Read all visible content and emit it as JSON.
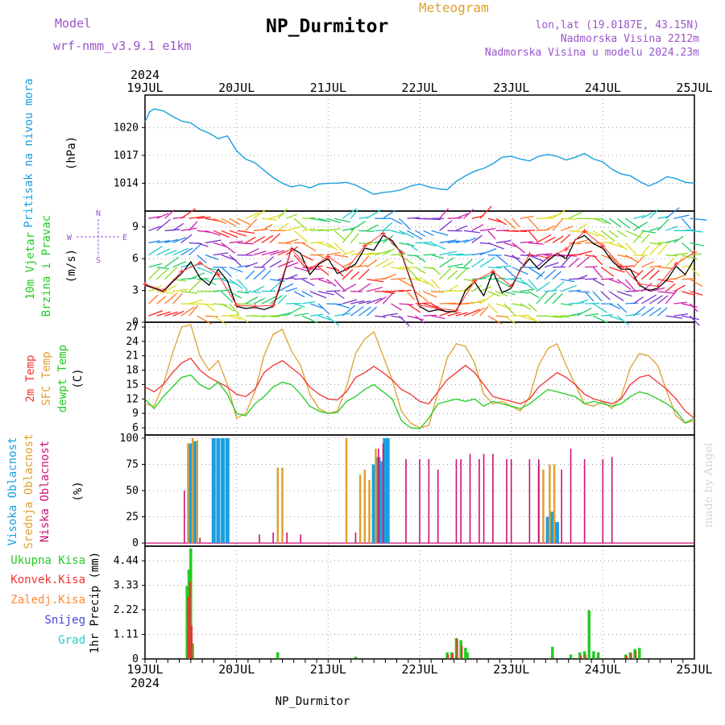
{
  "header": {
    "model_label": "Model",
    "model_name": "wrf-nmm_v3.9.1 e1km",
    "title": "NP_Durmitor",
    "meteogram_label": "Meteogram",
    "coords": "lon,lat (19.0187E, 43.15N)",
    "elev_station": "Nadmorska Visina 2212m",
    "elev_model": "Nadmorska Visina u modelu 2024.23m",
    "year_top": "2024",
    "year_bottom": "2024",
    "footer": "NP_Durmitor",
    "credit": "made by Angel"
  },
  "colors": {
    "pressure": "#1a9fe0",
    "wind_speed": "#000000",
    "gust": "#ff3333",
    "t2m": "#ee3333",
    "sfc": "#e0a030",
    "dewpt": "#22cc22",
    "cloud_high": "#1a9fe0",
    "cloud_mid": "#e0a030",
    "cloud_low": "#cc1177",
    "precip_total": "#22cc22",
    "precip_conv": "#ee3333",
    "precip_frozen": "#ff8833",
    "precip_snow": "#4444dd",
    "precip_graupel": "#22cccc",
    "title_purple": "#9955cc"
  },
  "chart_data": [
    {
      "type": "line",
      "id": "pressure",
      "ylabel_main": "Pritisak na nivou mora",
      "ylabel_unit": "(hPa)",
      "ylim": [
        1011,
        1023.5
      ],
      "yticks": [
        1014,
        1017,
        1020
      ],
      "xlim_days": [
        0,
        6
      ],
      "x_date_labels": [
        "19JUL",
        "20JUL",
        "21JUL",
        "22JUL",
        "23JUL",
        "24JUL",
        "25JUL"
      ],
      "series": [
        {
          "x": [
            0,
            0.05,
            0.1,
            0.2,
            0.3,
            0.4,
            0.5,
            0.6,
            0.7,
            0.8,
            0.9,
            1.0,
            1.1,
            1.2,
            1.3,
            1.4,
            1.5,
            1.6,
            1.7,
            1.8,
            1.9,
            2.0,
            2.1,
            2.2,
            2.3,
            2.4,
            2.5,
            2.6,
            2.7,
            2.8,
            2.9,
            3.0,
            3.1,
            3.2,
            3.3,
            3.4,
            3.5,
            3.6,
            3.7,
            3.8,
            3.9,
            4.0,
            4.1,
            4.2,
            4.3,
            4.4,
            4.5,
            4.6,
            4.7,
            4.8,
            4.9,
            5.0,
            5.1,
            5.2,
            5.3,
            5.4,
            5.5,
            5.6,
            5.7,
            5.8,
            5.9,
            6.0
          ],
          "y": [
            1020.6,
            1021.7,
            1022.0,
            1021.8,
            1021.2,
            1020.7,
            1020.5,
            1019.8,
            1019.4,
            1018.8,
            1019.1,
            1017.5,
            1016.6,
            1016.2,
            1015.4,
            1014.6,
            1014.0,
            1013.6,
            1013.8,
            1013.5,
            1013.9,
            1014.0,
            1014.0,
            1014.1,
            1013.8,
            1013.3,
            1012.8,
            1013.0,
            1013.1,
            1013.3,
            1013.7,
            1013.9,
            1013.6,
            1013.4,
            1013.3,
            1014.2,
            1014.8,
            1015.3,
            1015.6,
            1016.1,
            1016.8,
            1016.9,
            1016.6,
            1016.4,
            1016.9,
            1017.1,
            1016.9,
            1016.5,
            1016.8,
            1017.2,
            1016.6,
            1016.3,
            1015.5,
            1015.0,
            1014.8,
            1014.2,
            1013.7,
            1014.1,
            1014.7,
            1014.5,
            1014.1,
            1014.0
          ]
        }
      ]
    },
    {
      "type": "line",
      "id": "wind",
      "ylabel_main": "10m Vjetar",
      "ylabel_sub": "Brzina i Pravac",
      "ylabel_unit": "(m/s)",
      "compass": {
        "n": "N",
        "w": "W",
        "e": "E",
        "s": "S"
      },
      "ylim": [
        0,
        10.5
      ],
      "yticks": [
        0,
        3,
        6,
        9
      ],
      "series": [
        {
          "name": "speed",
          "x": [
            0,
            0.1,
            0.2,
            0.3,
            0.4,
            0.5,
            0.6,
            0.7,
            0.8,
            0.9,
            1.0,
            1.1,
            1.2,
            1.3,
            1.4,
            1.5,
            1.6,
            1.7,
            1.8,
            1.9,
            2.0,
            2.1,
            2.2,
            2.3,
            2.4,
            2.5,
            2.6,
            2.7,
            2.8,
            2.9,
            3.0,
            3.1,
            3.2,
            3.3,
            3.4,
            3.5,
            3.6,
            3.7,
            3.8,
            3.9,
            4.0,
            4.1,
            4.2,
            4.3,
            4.4,
            4.5,
            4.6,
            4.7,
            4.8,
            4.9,
            5.0,
            5.1,
            5.2,
            5.3,
            5.4,
            5.5,
            5.6,
            5.7,
            5.8,
            5.9,
            6.0
          ],
          "y": [
            3.5,
            3.2,
            2.9,
            3.8,
            4.6,
            5.7,
            4.2,
            3.5,
            5.0,
            3.9,
            1.5,
            1.3,
            1.4,
            1.2,
            1.5,
            4.0,
            7.0,
            6.5,
            4.5,
            5.5,
            6.0,
            4.6,
            5.0,
            5.5,
            7.0,
            6.8,
            8.2,
            7.7,
            6.5,
            4.0,
            1.5,
            1.0,
            1.2,
            1.0,
            1.0,
            3.0,
            3.8,
            2.5,
            4.8,
            2.8,
            3.2,
            5.0,
            6.0,
            5.0,
            5.8,
            6.5,
            6.0,
            7.8,
            8.2,
            7.4,
            7.0,
            5.8,
            5.0,
            5.0,
            3.5,
            3.0,
            3.2,
            4.0,
            5.3,
            4.5,
            6.0
          ]
        },
        {
          "name": "gust",
          "x": [
            0,
            0.2,
            0.4,
            0.6,
            0.8,
            1.0,
            1.2,
            1.4,
            1.6,
            1.8,
            2.0,
            2.2,
            2.4,
            2.6,
            2.8,
            3.0,
            3.2,
            3.4,
            3.6,
            3.8,
            4.0,
            4.2,
            4.4,
            4.6,
            4.8,
            5.0,
            5.2,
            5.4,
            5.6,
            5.8,
            6.0
          ],
          "y": [
            3.6,
            3.0,
            4.8,
            5.6,
            4.5,
            1.6,
            1.5,
            1.6,
            6.9,
            5.0,
            6.2,
            5.0,
            7.2,
            8.4,
            6.6,
            1.6,
            1.3,
            1.1,
            3.9,
            4.8,
            3.4,
            6.4,
            6.1,
            6.9,
            8.6,
            7.2,
            5.3,
            3.6,
            3.4,
            5.5,
            6.6
          ]
        }
      ]
    },
    {
      "type": "line",
      "id": "temperature",
      "ylabel_t2m": "2m Temp",
      "ylabel_sfc": "SFC Temp",
      "ylabel_dew": "dewpt Temp",
      "ylabel_unit": "(C)",
      "ylim": [
        4.5,
        28
      ],
      "yticks": [
        6,
        9,
        12,
        15,
        18,
        21,
        24,
        27
      ],
      "series": [
        {
          "name": "2m Temp",
          "x": [
            0,
            0.1,
            0.2,
            0.3,
            0.4,
            0.5,
            0.6,
            0.7,
            0.8,
            0.9,
            1.0,
            1.1,
            1.2,
            1.3,
            1.4,
            1.5,
            1.6,
            1.7,
            1.8,
            1.9,
            2.0,
            2.1,
            2.2,
            2.3,
            2.4,
            2.5,
            2.6,
            2.7,
            2.8,
            2.9,
            3.0,
            3.1,
            3.2,
            3.3,
            3.4,
            3.5,
            3.6,
            3.7,
            3.8,
            3.9,
            4.0,
            4.1,
            4.2,
            4.3,
            4.4,
            4.5,
            4.6,
            4.7,
            4.8,
            4.9,
            5.0,
            5.1,
            5.2,
            5.3,
            5.4,
            5.5,
            5.6,
            5.7,
            5.8,
            5.9,
            6.0
          ],
          "y": [
            14.5,
            13.5,
            15.0,
            17.5,
            19.5,
            20.5,
            18.0,
            16.5,
            15.5,
            14.5,
            13.0,
            12.5,
            14.0,
            17.5,
            19.0,
            20.0,
            18.5,
            17.0,
            14.5,
            13.0,
            12.0,
            11.8,
            13.5,
            16.5,
            17.5,
            18.8,
            17.5,
            16.0,
            14.0,
            13.0,
            11.5,
            11.0,
            13.5,
            16.0,
            17.5,
            19.0,
            17.5,
            15.0,
            12.5,
            12.0,
            11.5,
            11.0,
            12.0,
            14.5,
            16.0,
            17.5,
            16.5,
            15.0,
            13.0,
            12.0,
            11.5,
            11.0,
            12.0,
            15.0,
            16.5,
            17.0,
            15.5,
            14.0,
            12.0,
            9.5,
            8.0
          ]
        },
        {
          "name": "SFC Temp",
          "x": [
            0,
            0.1,
            0.2,
            0.3,
            0.4,
            0.5,
            0.6,
            0.7,
            0.8,
            0.9,
            1.0,
            1.1,
            1.2,
            1.3,
            1.4,
            1.5,
            1.6,
            1.7,
            1.8,
            1.9,
            2.0,
            2.1,
            2.2,
            2.3,
            2.4,
            2.5,
            2.6,
            2.7,
            2.8,
            2.9,
            3.0,
            3.1,
            3.2,
            3.3,
            3.4,
            3.5,
            3.6,
            3.7,
            3.8,
            3.9,
            4.0,
            4.1,
            4.2,
            4.3,
            4.4,
            4.5,
            4.6,
            4.7,
            4.8,
            4.9,
            5.0,
            5.1,
            5.2,
            5.3,
            5.4,
            5.5,
            5.6,
            5.7,
            5.8,
            5.9,
            6.0
          ],
          "y": [
            11.0,
            10.5,
            15.0,
            21.5,
            27.0,
            27.5,
            21.0,
            18.0,
            20.0,
            15.0,
            8.0,
            9.0,
            13.5,
            21.0,
            25.5,
            26.5,
            22.0,
            19.0,
            13.0,
            10.0,
            9.0,
            9.5,
            14.5,
            21.5,
            24.5,
            26.0,
            21.0,
            16.0,
            9.5,
            7.0,
            6.0,
            6.5,
            13.5,
            20.5,
            23.5,
            23.0,
            19.5,
            13.0,
            11.0,
            11.5,
            10.5,
            9.5,
            12.5,
            19.0,
            22.5,
            23.5,
            19.0,
            15.0,
            11.0,
            10.5,
            11.5,
            10.0,
            12.5,
            18.5,
            21.5,
            21.0,
            19.0,
            13.5,
            8.5,
            7.0,
            7.5
          ]
        },
        {
          "name": "dewpt Temp",
          "x": [
            0,
            0.1,
            0.2,
            0.3,
            0.4,
            0.5,
            0.6,
            0.7,
            0.8,
            0.9,
            1.0,
            1.1,
            1.2,
            1.3,
            1.4,
            1.5,
            1.6,
            1.7,
            1.8,
            1.9,
            2.0,
            2.1,
            2.2,
            2.3,
            2.4,
            2.5,
            2.6,
            2.7,
            2.8,
            2.9,
            3.0,
            3.1,
            3.2,
            3.3,
            3.4,
            3.5,
            3.6,
            3.7,
            3.8,
            3.9,
            4.0,
            4.1,
            4.2,
            4.3,
            4.4,
            4.5,
            4.6,
            4.7,
            4.8,
            4.9,
            5.0,
            5.1,
            5.2,
            5.3,
            5.4,
            5.5,
            5.6,
            5.7,
            5.8,
            5.9,
            6.0
          ],
          "y": [
            12.0,
            10.0,
            12.5,
            14.5,
            16.5,
            17.0,
            15.0,
            14.0,
            15.5,
            13.0,
            9.0,
            8.5,
            11.0,
            12.5,
            14.5,
            15.5,
            15.0,
            13.0,
            10.5,
            9.5,
            9.0,
            9.2,
            11.5,
            12.5,
            14.0,
            15.0,
            13.5,
            12.0,
            7.5,
            6.0,
            5.8,
            8.0,
            11.0,
            11.5,
            12.0,
            11.5,
            12.0,
            10.5,
            11.5,
            11.0,
            10.5,
            10.0,
            11.0,
            12.5,
            14.0,
            13.5,
            13.0,
            12.5,
            11.0,
            11.5,
            11.0,
            10.5,
            11.0,
            12.5,
            13.5,
            13.0,
            12.0,
            11.0,
            9.5,
            7.0,
            8.0
          ]
        }
      ]
    },
    {
      "type": "bar",
      "id": "clouds",
      "ylabel_high": "Visoka Oblacnost",
      "ylabel_mid": "Srednja Oblacnost",
      "ylabel_low": "Niska Oblacnost",
      "ylabel_unit": "(%)",
      "ylim": [
        -3,
        103
      ],
      "yticks": [
        0,
        25,
        50,
        75,
        100
      ],
      "series": [
        {
          "name": "Visoka Oblacnost",
          "x": [
            0.5,
            0.55,
            0.75,
            0.8,
            0.85,
            0.9,
            2.5,
            2.55,
            2.57,
            2.62,
            2.65,
            4.4,
            4.45,
            4.5
          ],
          "y": [
            95,
            97,
            100,
            100,
            100,
            100,
            75,
            82,
            78,
            100,
            100,
            25,
            30,
            20
          ]
        },
        {
          "name": "Srednja Oblacnost",
          "x": [
            0.47,
            0.52,
            0.57,
            1.45,
            1.5,
            2.2,
            2.35,
            2.4,
            2.45,
            2.52,
            4.3,
            4.35,
            4.42,
            4.47
          ],
          "y": [
            95,
            100,
            98,
            72,
            72,
            100,
            65,
            70,
            60,
            90,
            75,
            70,
            75,
            75
          ]
        },
        {
          "name": "Niska Oblacnost",
          "x": [
            0.43,
            0.6,
            1.25,
            1.4,
            1.55,
            1.7,
            2.3,
            2.55,
            2.6,
            2.85,
            3.0,
            3.1,
            3.2,
            3.4,
            3.45,
            3.55,
            3.65,
            3.7,
            3.8,
            3.95,
            4.0,
            4.2,
            4.3,
            4.55,
            4.65,
            4.8,
            5.0,
            5.1
          ],
          "y": [
            50,
            5,
            8,
            10,
            10,
            8,
            10,
            90,
            95,
            80,
            80,
            80,
            70,
            80,
            80,
            85,
            80,
            85,
            85,
            80,
            80,
            80,
            80,
            70,
            90,
            80,
            80,
            82
          ]
        }
      ]
    },
    {
      "type": "bar",
      "id": "precip",
      "ylabel_main": "1hr Precip",
      "ylabel_unit": "(mm)",
      "legend": [
        "Ukupna Kisa",
        "Konvek.Kisa",
        "Zaledj.Kisa",
        "Snijeg",
        "Grad"
      ],
      "ylim": [
        0,
        5.1
      ],
      "yticks": [
        0,
        1.11,
        2.22,
        3.33,
        4.44
      ],
      "series": [
        {
          "name": "Ukupna Kisa",
          "x": [
            0.46,
            0.48,
            0.5,
            0.52,
            1.45,
            2.3,
            3.3,
            3.35,
            3.4,
            3.45,
            3.5,
            3.52,
            4.45,
            4.65,
            4.75,
            4.8,
            4.85,
            4.9,
            4.95,
            5.25,
            5.3,
            5.35,
            5.4
          ],
          "y": [
            3.3,
            4.05,
            5.0,
            0.7,
            0.3,
            0.1,
            0.3,
            0.3,
            0.95,
            0.85,
            0.5,
            0.3,
            0.55,
            0.2,
            0.3,
            0.35,
            2.2,
            0.35,
            0.3,
            0.2,
            0.3,
            0.45,
            0.5
          ]
        },
        {
          "name": "Konvek.Kisa",
          "x": [
            0.47,
            0.49,
            0.51,
            3.31,
            3.36,
            3.41,
            3.46,
            4.76,
            4.81,
            5.26,
            5.31,
            5.36
          ],
          "y": [
            2.8,
            3.5,
            1.5,
            0.2,
            0.25,
            0.9,
            0.6,
            0.15,
            0.2,
            0.15,
            0.25,
            0.35
          ]
        }
      ]
    }
  ]
}
